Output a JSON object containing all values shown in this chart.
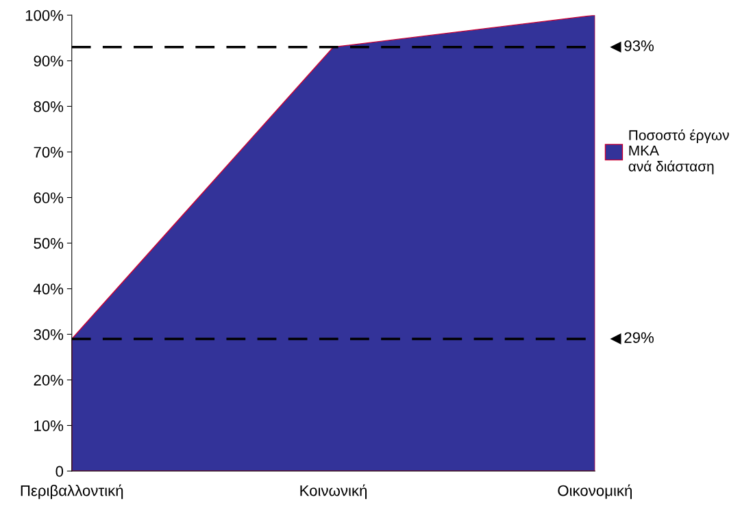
{
  "chart_data": {
    "type": "area",
    "categories": [
      "Περιβαλλοντική",
      "Κοινωνική",
      "Οικονομική"
    ],
    "series": [
      {
        "name": "Ποσοστό έργων\nΜΚΑ\nανά διάσταση",
        "color": "#333399",
        "values": [
          29,
          93,
          100
        ]
      }
    ],
    "ylim": [
      0,
      100
    ],
    "yticks": [
      {
        "value": 0,
        "label": "0"
      },
      {
        "value": 10,
        "label": "10%"
      },
      {
        "value": 20,
        "label": "20%"
      },
      {
        "value": 30,
        "label": "30%"
      },
      {
        "value": 40,
        "label": "40%"
      },
      {
        "value": 50,
        "label": "50%"
      },
      {
        "value": 60,
        "label": "60%"
      },
      {
        "value": 70,
        "label": "70%"
      },
      {
        "value": 80,
        "label": "80%"
      },
      {
        "value": 90,
        "label": "90%"
      },
      {
        "value": 100,
        "label": "100%"
      }
    ],
    "ref_lines": [
      {
        "axis": "y",
        "value": 93,
        "label": "93%",
        "color": "#000000",
        "line_style": "dashed"
      },
      {
        "axis": "y",
        "value": 29,
        "label": "29%",
        "color": "#000000",
        "line_style": "dashed"
      }
    ],
    "grid": false,
    "legend": "right"
  }
}
